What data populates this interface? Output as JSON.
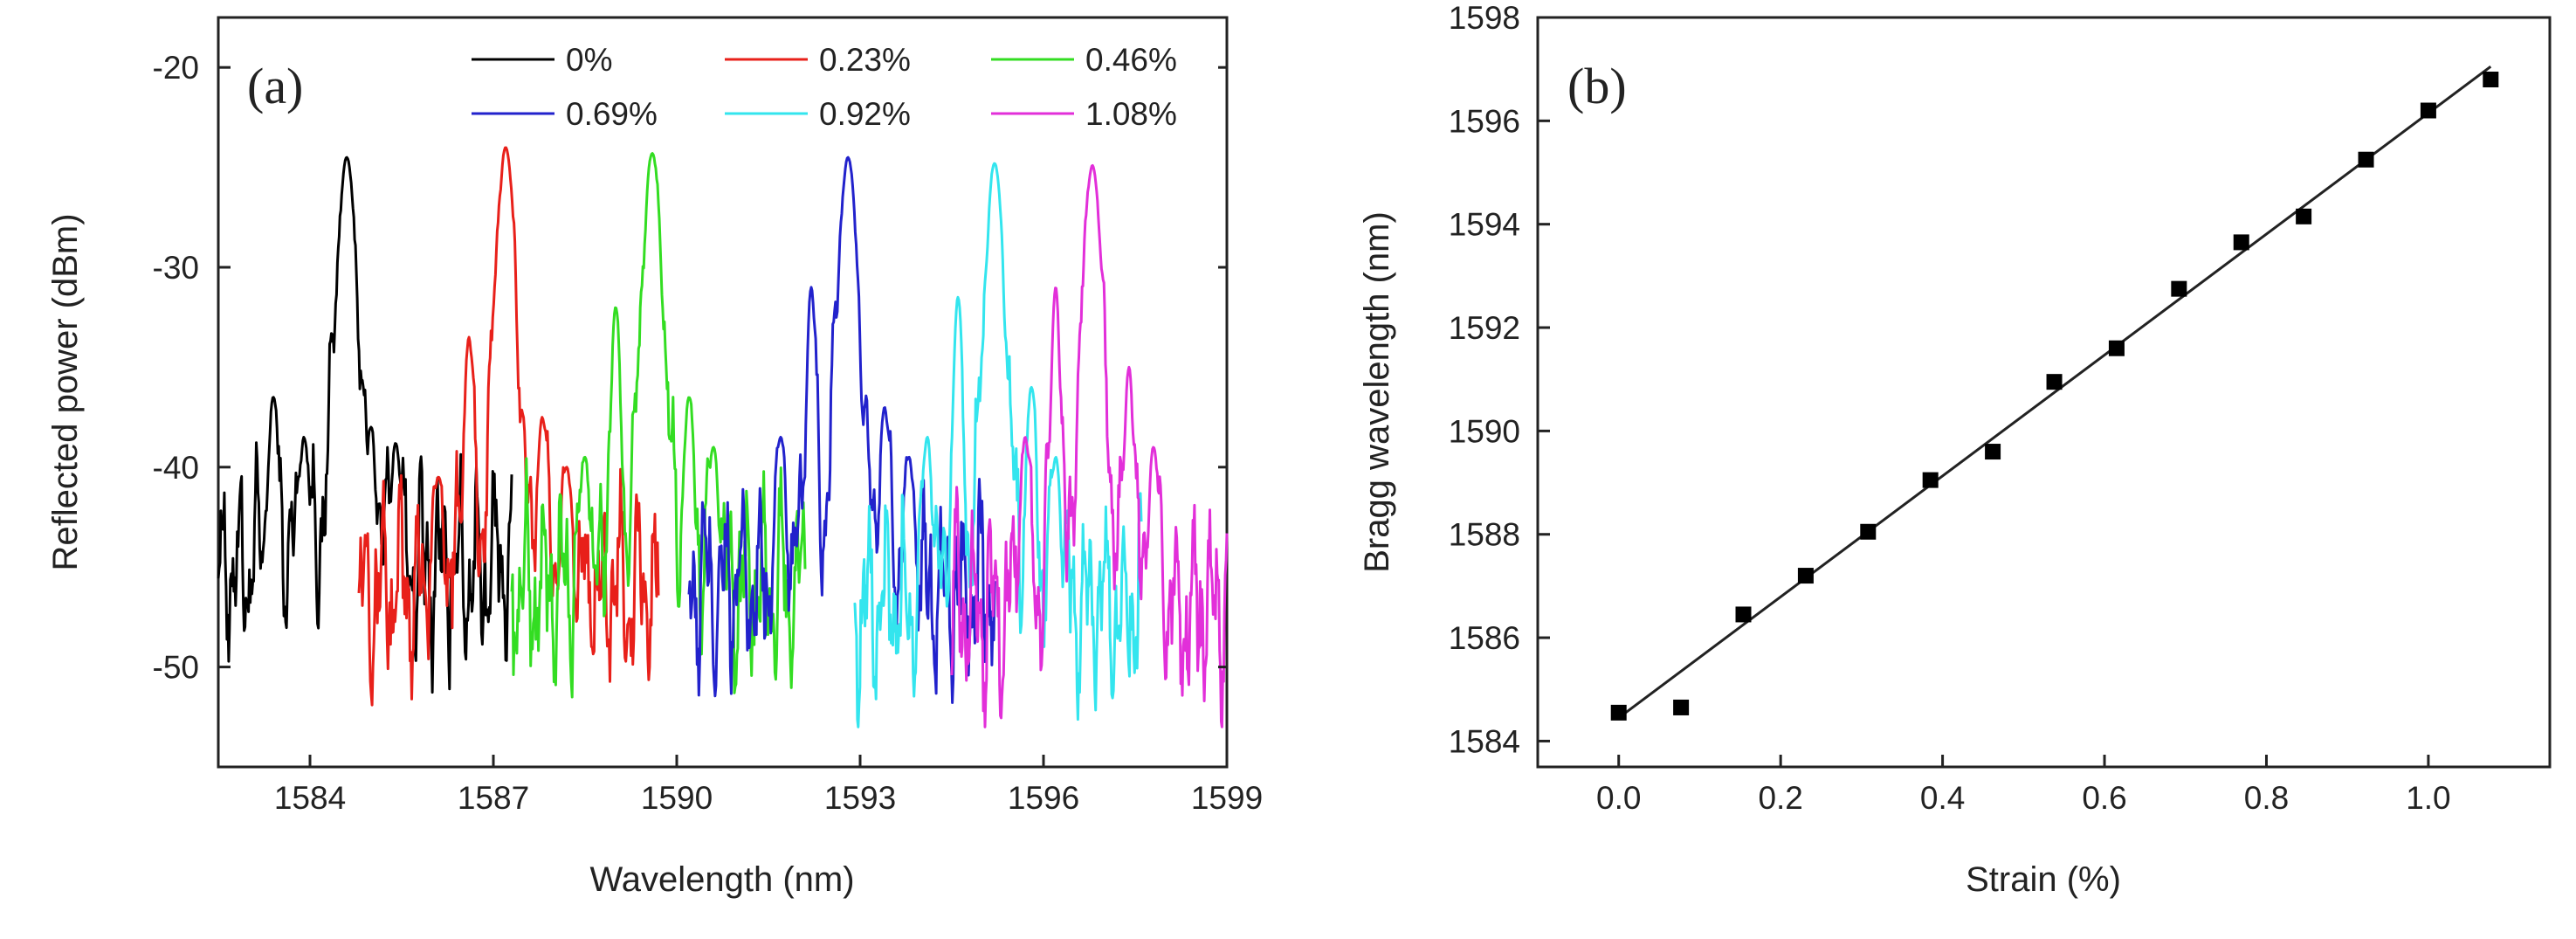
{
  "chart_data": [
    {
      "panel": "(a)",
      "type": "line",
      "xlabel": "Wavelength (nm)",
      "ylabel": "Reflected power (dBm)",
      "xlim": [
        1582.5,
        1599
      ],
      "ylim": [
        -55,
        -17.5
      ],
      "xticks": [
        1584,
        1587,
        1590,
        1593,
        1596,
        1599
      ],
      "yticks": [
        -50,
        -40,
        -30,
        -20
      ],
      "legend_position": "top-right",
      "series": [
        {
          "name": "0%",
          "color": "#000000",
          "x_range": [
            1582.5,
            1587.3
          ],
          "peak_center": 1584.6,
          "peak_power": -24.5,
          "sidelobes": [
            [
              1583.9,
              -38.5
            ],
            [
              1583.4,
              -36.5
            ],
            [
              1585.0,
              -38.0
            ],
            [
              1585.4,
              -38.8
            ]
          ],
          "floor": -45,
          "depth": 6
        },
        {
          "name": "0.23%",
          "color": "#e8201a",
          "x_range": [
            1584.8,
            1589.7
          ],
          "peak_center": 1587.2,
          "peak_power": -24.0,
          "sidelobes": [
            [
              1586.6,
              -33.5
            ],
            [
              1586.1,
              -40.5
            ],
            [
              1587.8,
              -37.5
            ],
            [
              1588.2,
              -40.0
            ]
          ],
          "floor": -46,
          "depth": 6
        },
        {
          "name": "0.46%",
          "color": "#33dd22",
          "x_range": [
            1587.3,
            1592.1
          ],
          "peak_center": 1589.6,
          "peak_power": -24.3,
          "sidelobes": [
            [
              1589.0,
              -32.0
            ],
            [
              1588.5,
              -39.5
            ],
            [
              1590.2,
              -36.5
            ],
            [
              1590.6,
              -39.0
            ]
          ],
          "floor": -46,
          "depth": 6
        },
        {
          "name": "0.69%",
          "color": "#2222cc",
          "x_range": [
            1590.2,
            1595.2
          ],
          "peak_center": 1592.8,
          "peak_power": -24.5,
          "sidelobes": [
            [
              1592.2,
              -31.0
            ],
            [
              1591.7,
              -38.5
            ],
            [
              1593.4,
              -37.0
            ],
            [
              1593.8,
              -39.5
            ]
          ],
          "floor": -46,
          "depth": 6
        },
        {
          "name": "0.92%",
          "color": "#33e5ee",
          "x_range": [
            1592.9,
            1597.6
          ],
          "peak_center": 1595.2,
          "peak_power": -24.8,
          "sidelobes": [
            [
              1594.6,
              -31.5
            ],
            [
              1594.1,
              -38.5
            ],
            [
              1595.8,
              -36.0
            ],
            [
              1596.2,
              -39.5
            ]
          ],
          "floor": -47,
          "depth": 6
        },
        {
          "name": "1.08%",
          "color": "#e22fd9",
          "x_range": [
            1594.5,
            1599.0
          ],
          "peak_center": 1596.8,
          "peak_power": -24.9,
          "sidelobes": [
            [
              1596.2,
              -31.0
            ],
            [
              1595.7,
              -38.5
            ],
            [
              1597.4,
              -35.0
            ],
            [
              1597.8,
              -39.0
            ]
          ],
          "floor": -47,
          "depth": 6
        }
      ]
    },
    {
      "panel": "(b)",
      "type": "scatter",
      "xlabel": "Strain (%)",
      "ylabel": "Bragg wavelength (nm)",
      "xlim": [
        -0.1,
        1.15
      ],
      "ylim": [
        1583.5,
        1598
      ],
      "xticks": [
        0.0,
        0.2,
        0.4,
        0.6,
        0.8,
        1.0
      ],
      "yticks": [
        1584,
        1586,
        1588,
        1590,
        1592,
        1594,
        1596,
        1598
      ],
      "points": [
        [
          0.0,
          1584.55
        ],
        [
          0.077,
          1584.65
        ],
        [
          0.154,
          1586.45
        ],
        [
          0.231,
          1587.2
        ],
        [
          0.308,
          1588.05
        ],
        [
          0.385,
          1589.05
        ],
        [
          0.462,
          1589.6
        ],
        [
          0.538,
          1590.95
        ],
        [
          0.615,
          1591.6
        ],
        [
          0.692,
          1592.75
        ],
        [
          0.769,
          1593.65
        ],
        [
          0.846,
          1594.15
        ],
        [
          0.923,
          1595.25
        ],
        [
          1.0,
          1596.2
        ],
        [
          1.077,
          1596.8
        ]
      ],
      "fit": {
        "x": [
          0.0,
          1.077
        ],
        "y": [
          1584.45,
          1597.05
        ]
      }
    }
  ]
}
